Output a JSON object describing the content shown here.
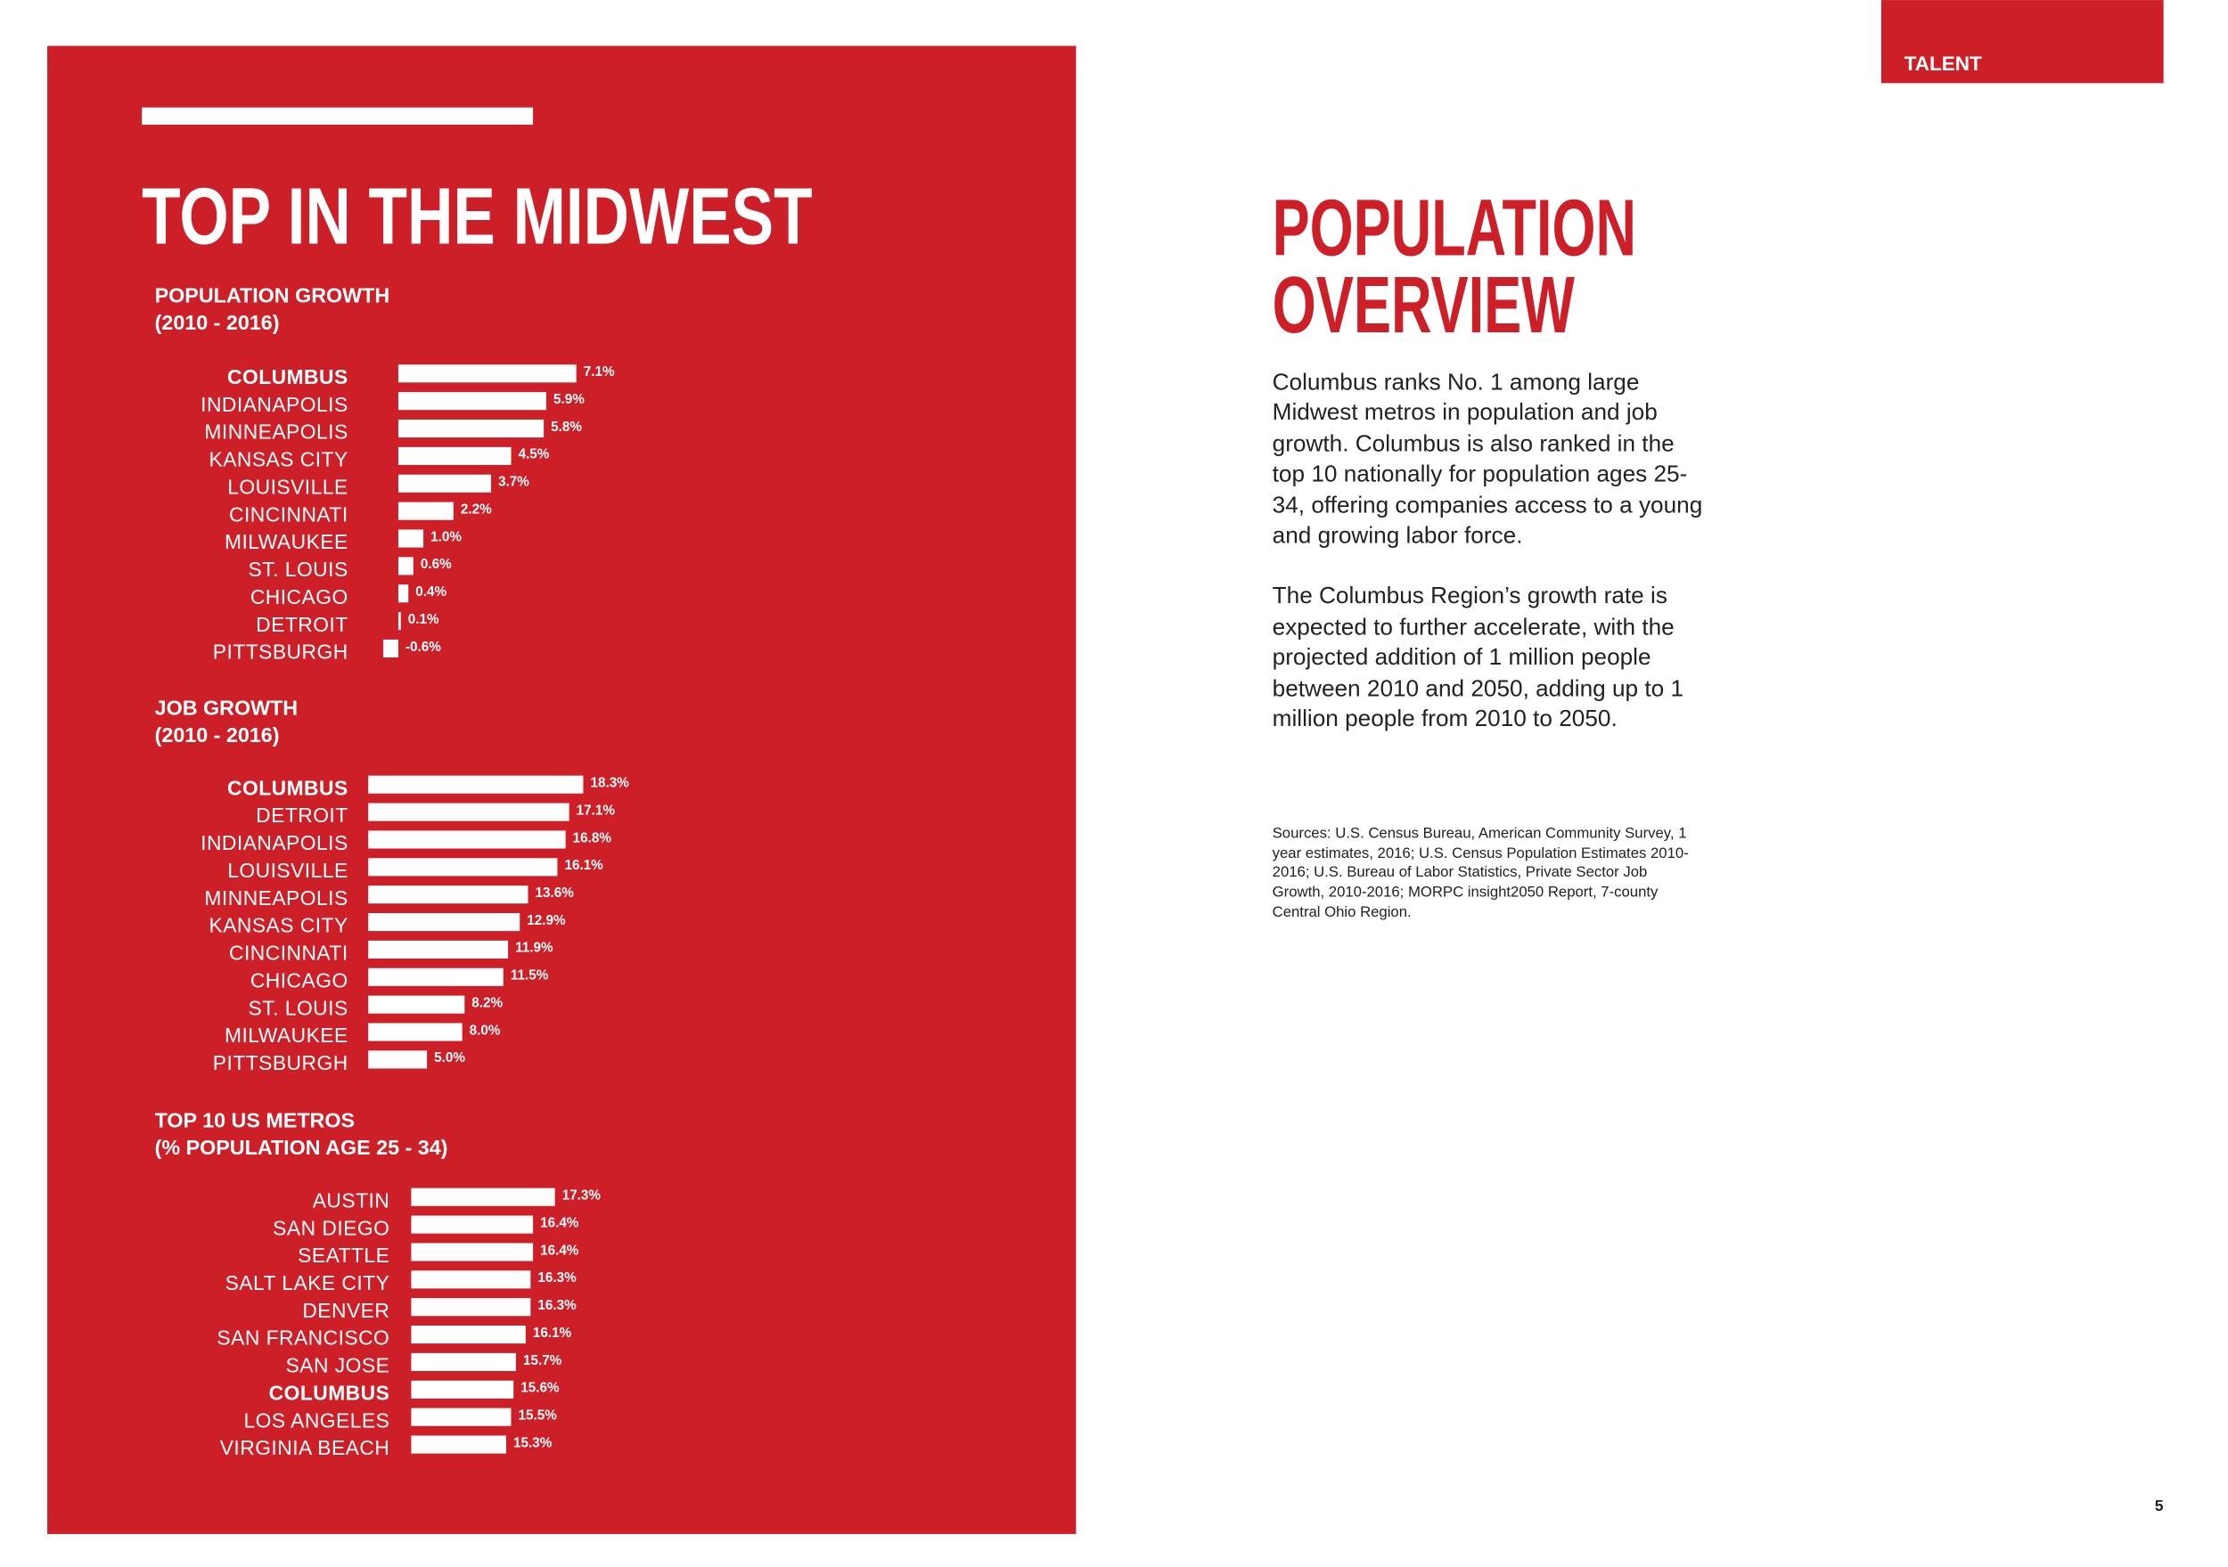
{
  "header": {
    "tab": "TALENT"
  },
  "left_panel": {
    "title": "TOP IN THE MIDWEST"
  },
  "chart_data": [
    {
      "type": "bar",
      "orientation": "horizontal",
      "title": "POPULATION GROWTH",
      "subtitle": "(2010 - 2016)",
      "categories": [
        "COLUMBUS",
        "INDIANAPOLIS",
        "MINNEAPOLIS",
        "KANSAS CITY",
        "LOUISVILLE",
        "CINCINNATI",
        "MILWAUKEE",
        "ST. LOUIS",
        "CHICAGO",
        "DETROIT",
        "PITTSBURGH"
      ],
      "values": [
        7.1,
        5.9,
        5.8,
        4.5,
        3.7,
        2.2,
        1.0,
        0.6,
        0.4,
        0.1,
        -0.6
      ],
      "value_labels": [
        "7.1%",
        "5.9%",
        "5.8%",
        "4.5%",
        "3.7%",
        "2.2%",
        "1.0%",
        "0.6%",
        "0.4%",
        "0.1%",
        "-0.6%"
      ],
      "color": "#ffffff",
      "bold_categories": [
        0
      ],
      "xlim": [
        -1,
        10
      ]
    },
    {
      "type": "bar",
      "orientation": "horizontal",
      "title": "JOB GROWTH",
      "subtitle": "(2010 - 2016)",
      "categories": [
        "COLUMBUS",
        "DETROIT",
        "INDIANAPOLIS",
        "LOUISVILLE",
        "MINNEAPOLIS",
        "KANSAS CITY",
        "CINCINNATI",
        "CHICAGO",
        "ST. LOUIS",
        "MILWAUKEE",
        "PITTSBURGH"
      ],
      "values": [
        18.3,
        17.1,
        16.8,
        16.1,
        13.6,
        12.9,
        11.9,
        11.5,
        8.2,
        8.0,
        5.0
      ],
      "value_labels": [
        "18.3%",
        "17.1%",
        "16.8%",
        "16.1%",
        "13.6%",
        "12.9%",
        "11.9%",
        "11.5%",
        "8.2%",
        "8.0%",
        "5.0%"
      ],
      "color": "#ffffff",
      "bold_categories": [
        0
      ],
      "xlim": [
        0,
        25
      ]
    },
    {
      "type": "bar",
      "orientation": "horizontal",
      "title": "TOP 10 US METROS",
      "subtitle": "(% POPULATION AGE 25 - 34)",
      "categories": [
        "AUSTIN",
        "SAN DIEGO",
        "SEATTLE",
        "SALT LAKE CITY",
        "DENVER",
        "SAN FRANCISCO",
        "SAN JOSE",
        "COLUMBUS",
        "LOS ANGELES",
        "VIRGINIA BEACH"
      ],
      "values": [
        17.3,
        16.4,
        16.4,
        16.3,
        16.3,
        16.1,
        15.7,
        15.6,
        15.5,
        15.3
      ],
      "value_labels": [
        "17.3%",
        "16.4%",
        "16.4%",
        "16.3%",
        "16.3%",
        "16.1%",
        "15.7%",
        "15.6%",
        "15.5%",
        "15.3%"
      ],
      "color": "#ffffff",
      "bold_categories": [
        7
      ],
      "xlim": [
        11.4,
        20
      ]
    }
  ],
  "right_panel": {
    "heading": [
      "POPULATION",
      "OVERVIEW"
    ],
    "paragraphs": [
      "Columbus ranks No. 1 among large Midwest metros in population and job growth. Columbus is also ranked in the top 10 nationally for population ages 25-34, offering companies access to a young and growing labor force.",
      "The Columbus Region’s growth rate is expected to further accelerate, with the projected addition of 1 million people between 2010 and 2050, adding up to 1 million people from 2010 to 2050."
    ],
    "sources": "Sources: U.S. Census Bureau, American Community Survey, 1 year estimates, 2016; U.S. Census Population Estimates 2010-2016; U.S. Bureau of Labor Statistics, Private Sector Job Growth, 2010-2016; MORPC insight2050 Report, 7-county Central Ohio Region."
  },
  "page_number": "5"
}
